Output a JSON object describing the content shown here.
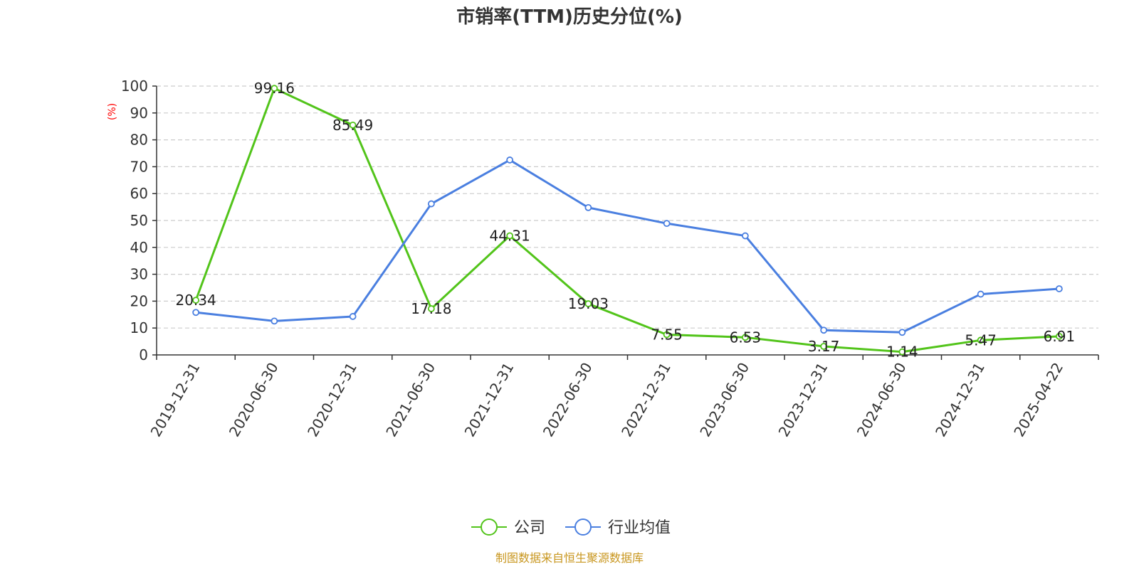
{
  "chart_data": {
    "type": "line",
    "title": "市销率(TTM)历史分位(%)",
    "ylabel": "(%)",
    "ylim": [
      0,
      100
    ],
    "yticks": [
      0,
      10,
      20,
      30,
      40,
      50,
      60,
      70,
      80,
      90,
      100
    ],
    "categories": [
      "2019-12-31",
      "2020-06-30",
      "2020-12-31",
      "2021-06-30",
      "2021-12-31",
      "2022-06-30",
      "2022-12-31",
      "2023-06-30",
      "2023-12-31",
      "2024-06-30",
      "2024-12-31",
      "2025-04-22"
    ],
    "series": [
      {
        "name": "公司",
        "color": "#52c41a",
        "values": [
          20.34,
          99.16,
          85.49,
          17.18,
          44.31,
          19.03,
          7.55,
          6.53,
          3.17,
          1.14,
          5.47,
          6.91
        ],
        "labels": [
          "20.34",
          "99.16",
          "85.49",
          "17.18",
          "44.31",
          "19.03",
          "7.55",
          "6.53",
          "3.17",
          "1.14",
          "5.47",
          "6.91"
        ]
      },
      {
        "name": "行业均值",
        "color": "#4a7fe0",
        "values": [
          15.8,
          12.6,
          14.3,
          56.2,
          72.5,
          54.8,
          48.9,
          44.3,
          9.2,
          8.4,
          22.6,
          24.6
        ]
      }
    ],
    "grid": true,
    "legend_position": "bottom-center"
  },
  "source_text": "制图数据来自恒生聚源数据库"
}
